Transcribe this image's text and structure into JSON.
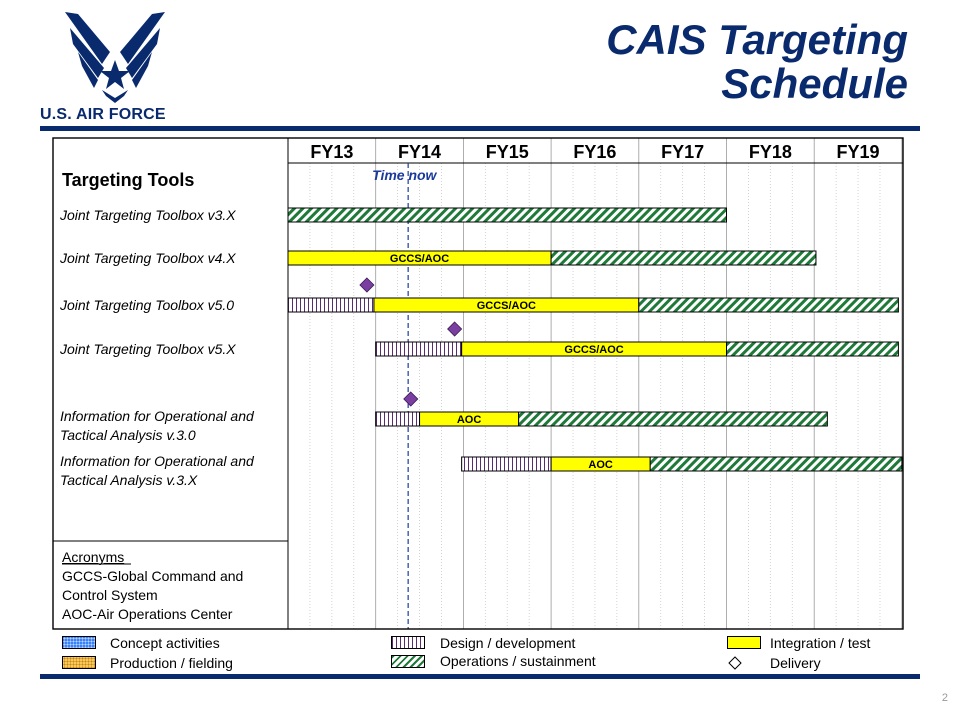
{
  "brand": {
    "logo_text": "U.S. AIR FORCE"
  },
  "title": {
    "line1": "CAIS Targeting",
    "line2": "Schedule"
  },
  "page_number": "2",
  "chart_data": {
    "type": "gantt",
    "fiscal_years": [
      "FY13",
      "FY14",
      "FY15",
      "FY16",
      "FY17",
      "FY18",
      "FY19"
    ],
    "section_label": "Targeting Tools",
    "time_now_label": "Time now",
    "time_now_fy": 1.37,
    "tools": [
      {
        "name_lines": [
          "Joint Targeting Toolbox v3.X"
        ],
        "bars": [
          {
            "phase": "operations",
            "start": 0.0,
            "end": 5.0,
            "label": ""
          }
        ]
      },
      {
        "name_lines": [
          "Joint Targeting Toolbox  v4.X"
        ],
        "bars": [
          {
            "phase": "integration",
            "start": 0.0,
            "end": 3.0,
            "label": "GCCS/AOC"
          },
          {
            "phase": "operations",
            "start": 3.0,
            "end": 6.02,
            "label": ""
          }
        ]
      },
      {
        "name_lines": [
          "Joint Targeting Toolbox v5.0"
        ],
        "delivery_fy": 0.9,
        "bars": [
          {
            "phase": "design",
            "start": 0.0,
            "end": 0.98,
            "label": ""
          },
          {
            "phase": "integration",
            "start": 0.98,
            "end": 4.0,
            "label": "GCCS/AOC"
          },
          {
            "phase": "operations",
            "start": 4.0,
            "end": 6.96,
            "label": ""
          }
        ]
      },
      {
        "name_lines": [
          "Joint Targeting Toolbox v5.X"
        ],
        "delivery_fy": 1.9,
        "bars": [
          {
            "phase": "design",
            "start": 1.0,
            "end": 1.98,
            "label": ""
          },
          {
            "phase": "integration",
            "start": 1.98,
            "end": 5.0,
            "label": "GCCS/AOC"
          },
          {
            "phase": "operations",
            "start": 5.0,
            "end": 6.96,
            "label": ""
          }
        ]
      },
      {
        "name_lines": [
          "Information for Operational and",
          "Tactical Analysis v.3.0"
        ],
        "delivery_fy": 1.4,
        "bars": [
          {
            "phase": "design",
            "start": 1.0,
            "end": 1.5,
            "label": ""
          },
          {
            "phase": "integration",
            "start": 1.5,
            "end": 2.63,
            "label": "AOC"
          },
          {
            "phase": "operations",
            "start": 2.63,
            "end": 6.15,
            "label": ""
          }
        ]
      },
      {
        "name_lines": [
          "Information for Operational and",
          "Tactical Analysis v.3.X"
        ],
        "bars": [
          {
            "phase": "design",
            "start": 1.98,
            "end": 3.0,
            "label": ""
          },
          {
            "phase": "integration",
            "start": 3.0,
            "end": 4.13,
            "label": "AOC"
          },
          {
            "phase": "operations",
            "start": 4.13,
            "end": 7.0,
            "label": ""
          }
        ]
      }
    ],
    "acronyms": {
      "heading": "Acronyms",
      "lines": [
        "GCCS-Global Command and",
        "Control System",
        "AOC-Air Operations Center"
      ]
    },
    "legend": [
      {
        "key": "concept",
        "label": "Concept activities"
      },
      {
        "key": "production",
        "label": "Production / fielding"
      },
      {
        "key": "design",
        "label": "Design / development"
      },
      {
        "key": "operations",
        "label": "Operations / sustainment"
      },
      {
        "key": "integration",
        "label": "Integration  / test"
      },
      {
        "key": "delivery",
        "label": "Delivery"
      }
    ],
    "colors": {
      "title": "#0a2a6e",
      "integration": "#ffff00",
      "operations_stripe": "#1f7a3a",
      "design_stripe": "#5c2a6e",
      "delivery": "#7a3fa0",
      "time_now_line": "#1a3a9c"
    }
  }
}
